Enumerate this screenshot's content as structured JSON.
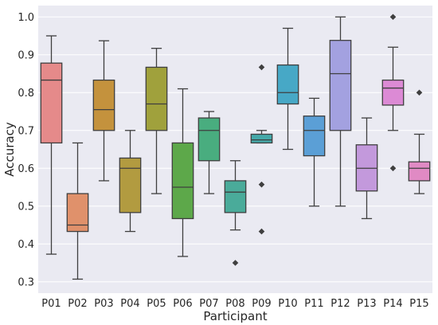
{
  "chart_data": {
    "type": "box",
    "xlabel": "Participant",
    "ylabel": "Accuracy",
    "ylim": [
      0.27,
      1.03
    ],
    "yticks": [
      0.3,
      0.4,
      0.5,
      0.6,
      0.7,
      0.8,
      0.9,
      1.0
    ],
    "ytick_labels": [
      "0.3",
      "0.4",
      "0.5",
      "0.6",
      "0.7",
      "0.8",
      "0.9",
      "1.0"
    ],
    "grid": true,
    "background": "#eaeaf2",
    "categories": [
      "P01",
      "P02",
      "P03",
      "P04",
      "P05",
      "P06",
      "P07",
      "P08",
      "P09",
      "P10",
      "P11",
      "P12",
      "P13",
      "P14",
      "P15"
    ],
    "boxes": [
      {
        "whisker_low": 0.373,
        "q1": 0.667,
        "median": 0.833,
        "q3": 0.878,
        "whisker_high": 0.95,
        "outliers": [],
        "color": "#e58a8a"
      },
      {
        "whisker_low": 0.307,
        "q1": 0.433,
        "median": 0.45,
        "q3": 0.533,
        "whisker_high": 0.667,
        "outliers": [],
        "color": "#e0916b"
      },
      {
        "whisker_low": 0.567,
        "q1": 0.7,
        "median": 0.755,
        "q3": 0.833,
        "whisker_high": 0.937,
        "outliers": [],
        "color": "#c4923d"
      },
      {
        "whisker_low": 0.433,
        "q1": 0.483,
        "median": 0.6,
        "q3": 0.627,
        "whisker_high": 0.7,
        "outliers": [],
        "color": "#b29b40"
      },
      {
        "whisker_low": 0.533,
        "q1": 0.7,
        "median": 0.77,
        "q3": 0.867,
        "whisker_high": 0.917,
        "outliers": [],
        "color": "#a0a13c"
      },
      {
        "whisker_low": 0.367,
        "q1": 0.467,
        "median": 0.55,
        "q3": 0.667,
        "whisker_high": 0.81,
        "outliers": [],
        "color": "#5da84a"
      },
      {
        "whisker_low": 0.533,
        "q1": 0.62,
        "median": 0.7,
        "q3": 0.733,
        "whisker_high": 0.75,
        "outliers": [],
        "color": "#49ad7f"
      },
      {
        "whisker_low": 0.437,
        "q1": 0.483,
        "median": 0.537,
        "q3": 0.567,
        "whisker_high": 0.62,
        "outliers": [
          0.35
        ],
        "color": "#4aab9a"
      },
      {
        "whisker_low": 0.667,
        "q1": 0.667,
        "median": 0.675,
        "q3": 0.69,
        "whisker_high": 0.7,
        "outliers": [
          0.867,
          0.557,
          0.433
        ],
        "color": "#45a9a9"
      },
      {
        "whisker_low": 0.65,
        "q1": 0.77,
        "median": 0.8,
        "q3": 0.873,
        "whisker_high": 0.97,
        "outliers": [],
        "color": "#47a8c6"
      },
      {
        "whisker_low": 0.5,
        "q1": 0.633,
        "median": 0.7,
        "q3": 0.738,
        "whisker_high": 0.785,
        "outliers": [],
        "color": "#5b9fd6"
      },
      {
        "whisker_low": 0.5,
        "q1": 0.7,
        "median": 0.85,
        "q3": 0.938,
        "whisker_high": 1.0,
        "outliers": [],
        "color": "#a3a1e0"
      },
      {
        "whisker_low": 0.467,
        "q1": 0.54,
        "median": 0.6,
        "q3": 0.662,
        "whisker_high": 0.733,
        "outliers": [],
        "color": "#c399dc"
      },
      {
        "whisker_low": 0.7,
        "q1": 0.767,
        "median": 0.812,
        "q3": 0.833,
        "whisker_high": 0.92,
        "outliers": [
          1.0,
          0.6
        ],
        "color": "#dc8ad5"
      },
      {
        "whisker_low": 0.533,
        "q1": 0.567,
        "median": 0.6,
        "q3": 0.617,
        "whisker_high": 0.69,
        "outliers": [
          0.8
        ],
        "color": "#e08ac4"
      }
    ]
  }
}
